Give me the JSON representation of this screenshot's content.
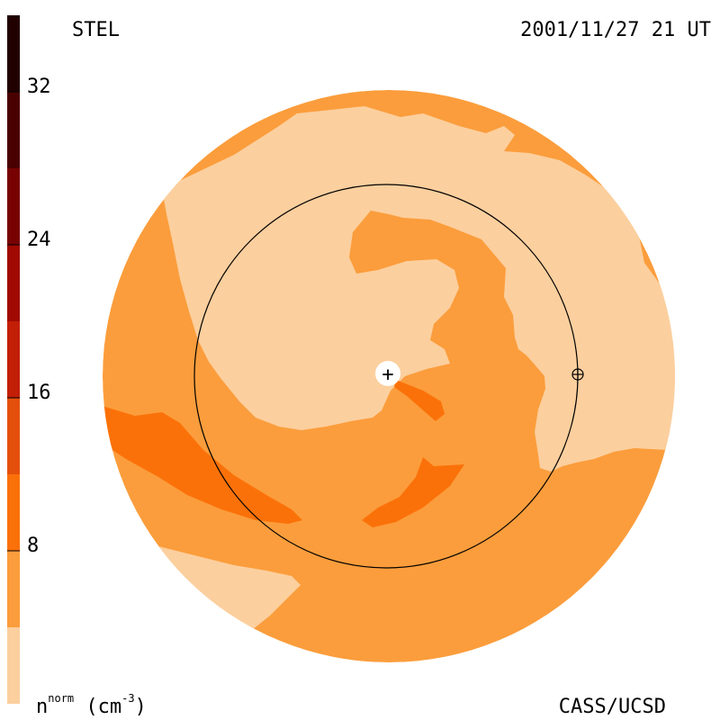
{
  "header": {
    "left_label": "STEL",
    "right_label": "2001/11/27 21 UT"
  },
  "footer": {
    "left_label_main": "n",
    "left_label_sup": "norm",
    "left_label_unit_open": " (cm",
    "left_label_unit_sup": "-3",
    "left_label_unit_close": ")",
    "right_label": "CASS/UCSD"
  },
  "colorbar": {
    "tick_labels": [
      "32",
      "24",
      "16",
      "8"
    ],
    "bands": [
      {
        "from": 0,
        "to": 4,
        "color": "#fccf9e"
      },
      {
        "from": 4,
        "to": 8,
        "color": "#fb9d3c"
      },
      {
        "from": 8,
        "to": 12,
        "color": "#fb7109"
      },
      {
        "from": 12,
        "to": 16,
        "color": "#e4500b"
      },
      {
        "from": 16,
        "to": 20,
        "color": "#c21f06"
      },
      {
        "from": 20,
        "to": 24,
        "color": "#a00a03"
      },
      {
        "from": 24,
        "to": 28,
        "color": "#780202"
      },
      {
        "from": 28,
        "to": 32,
        "color": "#4a0000"
      },
      {
        "from": 32,
        "to": 36,
        "color": "#210000"
      }
    ]
  },
  "colors": {
    "light": "#fccf9e",
    "medium": "#fb9d3c",
    "dark": "#fb7109"
  },
  "markers": {
    "sun_symbol": "+",
    "earth_icon": "earth-symbol"
  }
}
